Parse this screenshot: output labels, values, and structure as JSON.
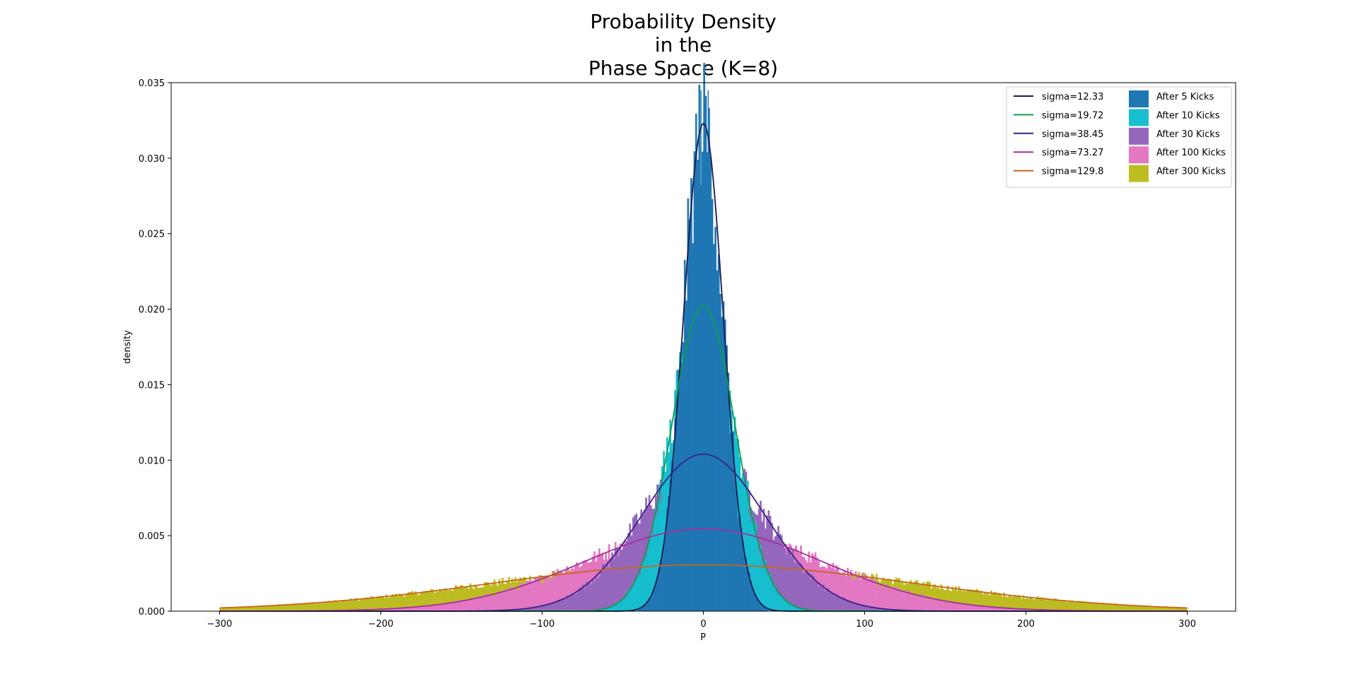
{
  "chart_data": {
    "type": "bar",
    "title_lines": [
      "Probability Density",
      "in the",
      "Phase Space (K=8)"
    ],
    "xlabel": "P",
    "ylabel": "density",
    "xlim": [
      -330,
      330
    ],
    "ylim": [
      0,
      0.035
    ],
    "x_ticks": [
      -300,
      -200,
      -100,
      0,
      100,
      200,
      300
    ],
    "x_tick_labels": [
      "−300",
      "−200",
      "−100",
      "0",
      "100",
      "200",
      "300"
    ],
    "y_ticks": [
      0,
      0.005,
      0.01,
      0.015,
      0.02,
      0.025,
      0.03,
      0.035
    ],
    "y_tick_labels": [
      "0.000",
      "0.005",
      "0.010",
      "0.015",
      "0.020",
      "0.025",
      "0.030",
      "0.035"
    ],
    "grid": false,
    "legend_position": "top-right",
    "histograms": [
      {
        "name": "After 5 Kicks",
        "color": "#1f77b4",
        "sigma": 12.33,
        "peak": 0.0323,
        "range": [
          -40,
          40
        ],
        "spikes": [
          {
            "x": -1.5,
            "y": 0.0345
          },
          {
            "x": 3.0,
            "y": 0.0345
          }
        ]
      },
      {
        "name": "After 10 Kicks",
        "color": "#17becf",
        "sigma": 19.72,
        "peak": 0.0202,
        "range": [
          -70,
          70
        ]
      },
      {
        "name": "After 30 Kicks",
        "color": "#9467bd",
        "sigma": 38.45,
        "peak": 0.0104,
        "range": [
          -120,
          120
        ]
      },
      {
        "name": "After 100 Kicks",
        "color": "#e377c2",
        "sigma": 73.27,
        "peak": 0.00545,
        "range": [
          -200,
          200
        ]
      },
      {
        "name": "After 300 Kicks",
        "color": "#bcbd22",
        "sigma": 129.8,
        "peak": 0.00307,
        "range": [
          -300,
          300
        ]
      }
    ],
    "fit_curves": [
      {
        "name": "sigma=12.33",
        "color": "#1a1a4e",
        "sigma": 12.33,
        "peak": 0.0323
      },
      {
        "name": "sigma=19.72",
        "color": "#0e9d4a",
        "sigma": 19.72,
        "peak": 0.0202
      },
      {
        "name": "sigma=38.45",
        "color": "#3b1f8c",
        "sigma": 38.45,
        "peak": 0.0104
      },
      {
        "name": "sigma=73.27",
        "color": "#a3309a",
        "sigma": 73.27,
        "peak": 0.00545
      },
      {
        "name": "sigma=129.8",
        "color": "#c8651b",
        "sigma": 129.8,
        "peak": 0.00307
      }
    ],
    "curve_range": [
      -300,
      300
    ]
  }
}
